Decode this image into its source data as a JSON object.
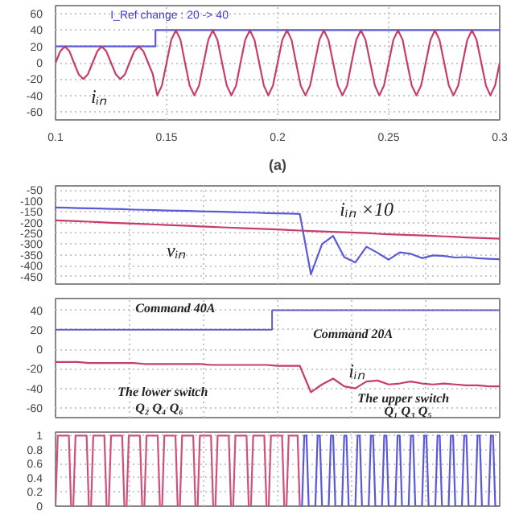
{
  "chart_data": [
    {
      "type": "line",
      "xlim": [
        0.1,
        0.3
      ],
      "xticks": [
        0.1,
        0.15,
        0.2,
        0.25,
        0.3
      ],
      "ylim": [
        -70,
        70
      ],
      "yticks": [
        -60,
        -40,
        -20,
        0,
        20,
        40,
        60
      ],
      "grid": true,
      "series": [
        {
          "color": "#5a5ad8",
          "x": [
            0.1,
            0.145,
            0.145,
            0.3
          ],
          "values": [
            20,
            20,
            40,
            40
          ]
        },
        {
          "color": "#c83c6c",
          "x": [
            0.1,
            0.1021,
            0.1042,
            0.1063,
            0.1083,
            0.1104,
            0.1125,
            0.1146,
            0.1167,
            0.1188,
            0.1208,
            0.1229,
            0.125,
            0.1271,
            0.1292,
            0.1313,
            0.1333,
            0.1354,
            0.1375,
            0.1396,
            0.1417,
            0.1438,
            0.1458,
            0.1479,
            0.15,
            0.1521,
            0.1542,
            0.1563,
            0.1583,
            0.1604,
            0.1625,
            0.1646,
            0.1667,
            0.1688,
            0.1708,
            0.1729,
            0.175,
            0.1771,
            0.1792,
            0.1813,
            0.1833,
            0.1854,
            0.1875,
            0.1896,
            0.1917,
            0.1938,
            0.1958,
            0.1979,
            0.2,
            0.2021,
            0.2042,
            0.2063,
            0.2083,
            0.2104,
            0.2125,
            0.2146,
            0.2167,
            0.2188,
            0.2208,
            0.2229,
            0.225,
            0.2271,
            0.2292,
            0.2313,
            0.2333,
            0.2354,
            0.2375,
            0.2396,
            0.2417,
            0.2438,
            0.2458,
            0.2479,
            0.25,
            0.2521,
            0.2542,
            0.2563,
            0.2583,
            0.2604,
            0.2625,
            0.2646,
            0.2667,
            0.2688,
            0.2708,
            0.2729,
            0.275,
            0.2771,
            0.2792,
            0.2813,
            0.2833,
            0.2854,
            0.2875,
            0.2896,
            0.2917,
            0.2938,
            0.2958,
            0.2979,
            0.3
          ],
          "values": [
            0,
            14,
            20,
            14,
            0,
            -14,
            -20,
            -14,
            0,
            14,
            20,
            14,
            0,
            -14,
            -20,
            -14,
            0,
            14,
            20,
            14,
            0,
            -14,
            -40,
            -28,
            0,
            28,
            40,
            28,
            0,
            -28,
            -40,
            -28,
            0,
            28,
            40,
            28,
            0,
            -28,
            -40,
            -28,
            0,
            28,
            40,
            28,
            0,
            -28,
            -40,
            -28,
            0,
            28,
            40,
            28,
            0,
            -28,
            -40,
            -28,
            0,
            28,
            40,
            28,
            0,
            -28,
            -40,
            -28,
            0,
            28,
            40,
            28,
            0,
            -28,
            -40,
            -28,
            0,
            28,
            40,
            28,
            0,
            -28,
            -40,
            -28,
            0,
            28,
            40,
            28,
            0,
            -28,
            -40,
            -28,
            0,
            28,
            40,
            28,
            0,
            -28,
            -40,
            -28,
            0
          ]
        }
      ],
      "annotations": [
        {
          "text": "I_Ref change : 20 -> 40",
          "x": 0.145,
          "y": 40
        },
        {
          "text": "iᵢₙ",
          "x": 0.113,
          "y": -20
        },
        "(a)"
      ]
    },
    {
      "type": "line",
      "categories": [
        null,
        null,
        null,
        null,
        null,
        null,
        null,
        null,
        null,
        null,
        null,
        null,
        null,
        null,
        null,
        null,
        null,
        null,
        null,
        null,
        null,
        null,
        null,
        null,
        null,
        null,
        null,
        null,
        null,
        null,
        null,
        null,
        null,
        null,
        null,
        null,
        null,
        null,
        null,
        null,
        null
      ],
      "ylim": [
        -485,
        -30
      ],
      "yticks": [
        -450,
        -400,
        -350,
        -300,
        -250,
        -200,
        -150,
        -100,
        -50
      ],
      "grid": true,
      "tick_labels": "y",
      "series": [
        {
          "color": "#c83c6c",
          "values": [
            -190,
            -192,
            -194,
            -196,
            -198,
            -201,
            -203,
            -205,
            -207,
            -209,
            -211,
            -213,
            -215,
            -218,
            -220,
            -222,
            -224,
            -226,
            -228,
            -230,
            -232,
            -235,
            -237,
            -239,
            -241,
            -243,
            -245,
            -247,
            -249,
            -252,
            -254,
            -256,
            -258,
            -260,
            -262,
            -264,
            -266,
            -269,
            -271,
            -273,
            -275
          ]
        },
        {
          "color": "#5a5ad8",
          "values": [
            -130,
            -131,
            -133,
            -134,
            -135,
            -137,
            -138,
            -140,
            -141,
            -142,
            -144,
            -145,
            -146,
            -148,
            -149,
            -150,
            -152,
            -153,
            -154,
            -156,
            -157,
            -158,
            -160,
            -440,
            -300,
            -262,
            -360,
            -385,
            -312,
            -340,
            -372,
            -338,
            -345,
            -365,
            -352,
            -355,
            -362,
            -360,
            -365,
            -368,
            -370
          ]
        }
      ],
      "annotations": [
        "iᵢₙ ×10",
        "vᵢₙ"
      ]
    },
    {
      "type": "line",
      "categories": [
        null,
        null,
        null,
        null,
        null,
        null,
        null,
        null,
        null,
        null,
        null,
        null,
        null,
        null,
        null,
        null,
        null,
        null,
        null,
        null,
        null,
        null,
        null,
        null,
        null,
        null,
        null,
        null,
        null,
        null,
        null,
        null,
        null,
        null,
        null,
        null,
        null,
        null,
        null,
        null,
        null
      ],
      "ylim": [
        -70,
        52
      ],
      "yticks": [
        -60,
        -40,
        -20,
        0,
        20,
        40
      ],
      "grid": true,
      "tick_labels": "y",
      "series": [
        {
          "type": "step",
          "color": "#6060c0",
          "values": [
            20,
            20,
            20,
            20,
            20,
            20,
            20,
            20,
            20,
            20,
            20,
            20,
            20,
            20,
            20,
            20,
            20,
            20,
            20,
            20,
            40,
            40,
            40,
            40,
            40,
            40,
            40,
            40,
            40,
            40,
            40,
            40,
            40,
            40,
            40,
            40,
            40,
            40,
            40,
            40,
            40
          ]
        },
        {
          "color": "#c83c6c",
          "values": [
            -13,
            -13,
            -13,
            -14,
            -14,
            -14,
            -14,
            -14,
            -15,
            -15,
            -15,
            -15,
            -15,
            -15,
            -16,
            -16,
            -16,
            -16,
            -16,
            -16,
            -17,
            -17,
            -17,
            -44,
            -36,
            -30,
            -38,
            -40,
            -33,
            -32,
            -36,
            -35,
            -33,
            -35,
            -36,
            -35,
            -36,
            -37,
            -37,
            -38,
            -38
          ]
        }
      ],
      "annotations": [
        "Command 40A",
        "Command 20A",
        "iᵢₙ",
        "The lower switch",
        "Q₂   Q₄   Q₆",
        "The upper switch",
        "Q₁   Q₃   Q₅"
      ]
    },
    {
      "type": "line",
      "categories": [
        null,
        null,
        null,
        null,
        null,
        null,
        null,
        null,
        null,
        null,
        null,
        null,
        null,
        null,
        null,
        null,
        null,
        null,
        null,
        null,
        null,
        null,
        null,
        null,
        null,
        null,
        null,
        null,
        null,
        null,
        null,
        null,
        null,
        null,
        null,
        null,
        null,
        null,
        null,
        null,
        null,
        null,
        null,
        null,
        null,
        null,
        null,
        null,
        null,
        null,
        null,
        null,
        null,
        null,
        null,
        null,
        null,
        null,
        null,
        null,
        null,
        null,
        null,
        null,
        null,
        null,
        null,
        null,
        null,
        null,
        null,
        null,
        null,
        null,
        null,
        null,
        null,
        null,
        null,
        null,
        null,
        null,
        null,
        null,
        null,
        null,
        null,
        null,
        null,
        null,
        null,
        null,
        null,
        null,
        null,
        null,
        null,
        null,
        null,
        null,
        null,
        null,
        null,
        null,
        null,
        null,
        null,
        null,
        null,
        null,
        null,
        null,
        null,
        null,
        null,
        null,
        null,
        null,
        null,
        null,
        null,
        null,
        null,
        null,
        null,
        null,
        null,
        null,
        null,
        null,
        null,
        null,
        null,
        null,
        null,
        null,
        null,
        null,
        null,
        null,
        null,
        null,
        null,
        null,
        null,
        null,
        null,
        null,
        null,
        null,
        null,
        null,
        null,
        null,
        null,
        null,
        null,
        null,
        null,
        null,
        null,
        null,
        null,
        null,
        null,
        null,
        null,
        null,
        null,
        null,
        null,
        null,
        null,
        null,
        null,
        null,
        null,
        null,
        null,
        null,
        null,
        null,
        null,
        null,
        null,
        null,
        null,
        null,
        null,
        null,
        null,
        null,
        null,
        null,
        null,
        null,
        null,
        null,
        null,
        null,
        null
      ],
      "ylim": [
        0,
        1.05
      ],
      "yticks": [
        0,
        0.2,
        0.4,
        0.6,
        0.8,
        1
      ],
      "grid": true,
      "tick_labels": "y",
      "series": [
        {
          "color": "#d0507a",
          "values": [
            0,
            1,
            1,
            1,
            1,
            1,
            1,
            0,
            0,
            1,
            1,
            1,
            1,
            1,
            1,
            0,
            0,
            1,
            1,
            1,
            1,
            1,
            1,
            0,
            0,
            1,
            1,
            1,
            1,
            1,
            1,
            0,
            0,
            1,
            1,
            1,
            1,
            1,
            1,
            0,
            0,
            1,
            1,
            1,
            1,
            1,
            1,
            0,
            0,
            1,
            1,
            1,
            1,
            1,
            1,
            0,
            0,
            1,
            1,
            1,
            1,
            1,
            1,
            0,
            0,
            1,
            1,
            1,
            1,
            1,
            1,
            0,
            0,
            1,
            1,
            1,
            1,
            1,
            1,
            0,
            0,
            1,
            1,
            1,
            1,
            1,
            1,
            0,
            0,
            1,
            1,
            1,
            1,
            1,
            1,
            0,
            0,
            1,
            1,
            1,
            1,
            1,
            1,
            0,
            0,
            1,
            1,
            1,
            1,
            1,
            0,
            null,
            null,
            null,
            null,
            null,
            null,
            null,
            null,
            null,
            null,
            null,
            null,
            null,
            null,
            null,
            null,
            null,
            null,
            null,
            null,
            null,
            null,
            null,
            null,
            null,
            null,
            null,
            null,
            null,
            null,
            null,
            null,
            null,
            null,
            null,
            null,
            null,
            null,
            null,
            null,
            null,
            null,
            null,
            null,
            null,
            null,
            null,
            null,
            null,
            null,
            null,
            null,
            null,
            null,
            null,
            null,
            null,
            null,
            null,
            null,
            null,
            null,
            null,
            null,
            null,
            null,
            null,
            null,
            null,
            null,
            null,
            null,
            null,
            null,
            null,
            null,
            null,
            null,
            null,
            null,
            null,
            null,
            null,
            null,
            null,
            null,
            null,
            null,
            null,
            null
          ]
        },
        {
          "color": "#5a5ad8",
          "values": [
            null,
            null,
            null,
            null,
            null,
            null,
            null,
            null,
            null,
            null,
            null,
            null,
            null,
            null,
            null,
            null,
            null,
            null,
            null,
            null,
            null,
            null,
            null,
            null,
            null,
            null,
            null,
            null,
            null,
            null,
            null,
            null,
            null,
            null,
            null,
            null,
            null,
            null,
            null,
            null,
            null,
            null,
            null,
            null,
            null,
            null,
            null,
            null,
            null,
            null,
            null,
            null,
            null,
            null,
            null,
            null,
            null,
            null,
            null,
            null,
            null,
            null,
            null,
            null,
            null,
            null,
            null,
            null,
            null,
            null,
            null,
            null,
            null,
            null,
            null,
            null,
            null,
            null,
            null,
            null,
            null,
            null,
            null,
            null,
            null,
            null,
            null,
            null,
            null,
            null,
            null,
            null,
            null,
            null,
            null,
            null,
            null,
            null,
            null,
            null,
            null,
            null,
            null,
            null,
            null,
            null,
            null,
            null,
            null,
            null,
            0,
            0,
            1,
            1,
            0,
            0,
            0,
            0,
            1,
            1,
            0,
            0,
            0,
            0,
            1,
            1,
            0,
            0,
            0,
            0,
            1,
            1,
            0,
            0,
            0,
            0,
            1,
            1,
            0,
            0,
            0,
            0,
            1,
            1,
            0,
            0,
            0,
            0,
            1,
            1,
            0,
            0,
            0,
            0,
            1,
            1,
            0,
            0,
            0,
            0,
            1,
            1,
            0,
            0,
            0,
            0,
            1,
            1,
            0,
            0,
            0,
            0,
            1,
            1,
            0,
            0,
            0,
            0,
            1,
            1,
            0,
            0,
            0,
            0,
            1,
            1,
            0,
            0,
            0,
            0,
            1,
            1,
            0,
            0,
            0,
            0,
            1,
            1,
            0,
            0,
            0
          ]
        }
      ]
    }
  ]
}
